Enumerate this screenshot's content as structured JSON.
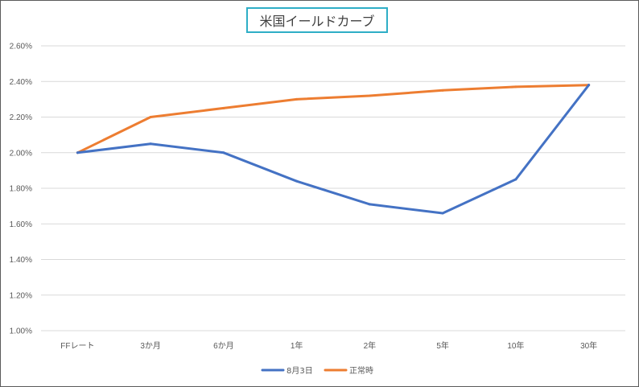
{
  "chart_data": {
    "type": "line",
    "title": "米国イールドカーブ",
    "categories": [
      "FFレート",
      "3か月",
      "6か月",
      "1年",
      "2年",
      "5年",
      "10年",
      "30年"
    ],
    "series": [
      {
        "name": "8月3日",
        "color": "#4472c4",
        "values": [
          2.0,
          2.05,
          2.0,
          1.84,
          1.71,
          1.66,
          1.85,
          2.38
        ]
      },
      {
        "name": "正常時",
        "color": "#ed7d31",
        "values": [
          2.0,
          2.2,
          2.25,
          2.3,
          2.32,
          2.35,
          2.37,
          2.38
        ]
      }
    ],
    "ylim": [
      1.0,
      2.6
    ],
    "yticks": [
      1.0,
      1.2,
      1.4,
      1.6,
      1.8,
      2.0,
      2.2,
      2.4,
      2.6
    ],
    "ytick_labels": [
      "1.00%",
      "1.20%",
      "1.40%",
      "1.60%",
      "1.80%",
      "2.00%",
      "2.20%",
      "2.40%",
      "2.60%"
    ],
    "xlabel": "",
    "ylabel": "",
    "grid": true,
    "legend_position": "bottom"
  }
}
